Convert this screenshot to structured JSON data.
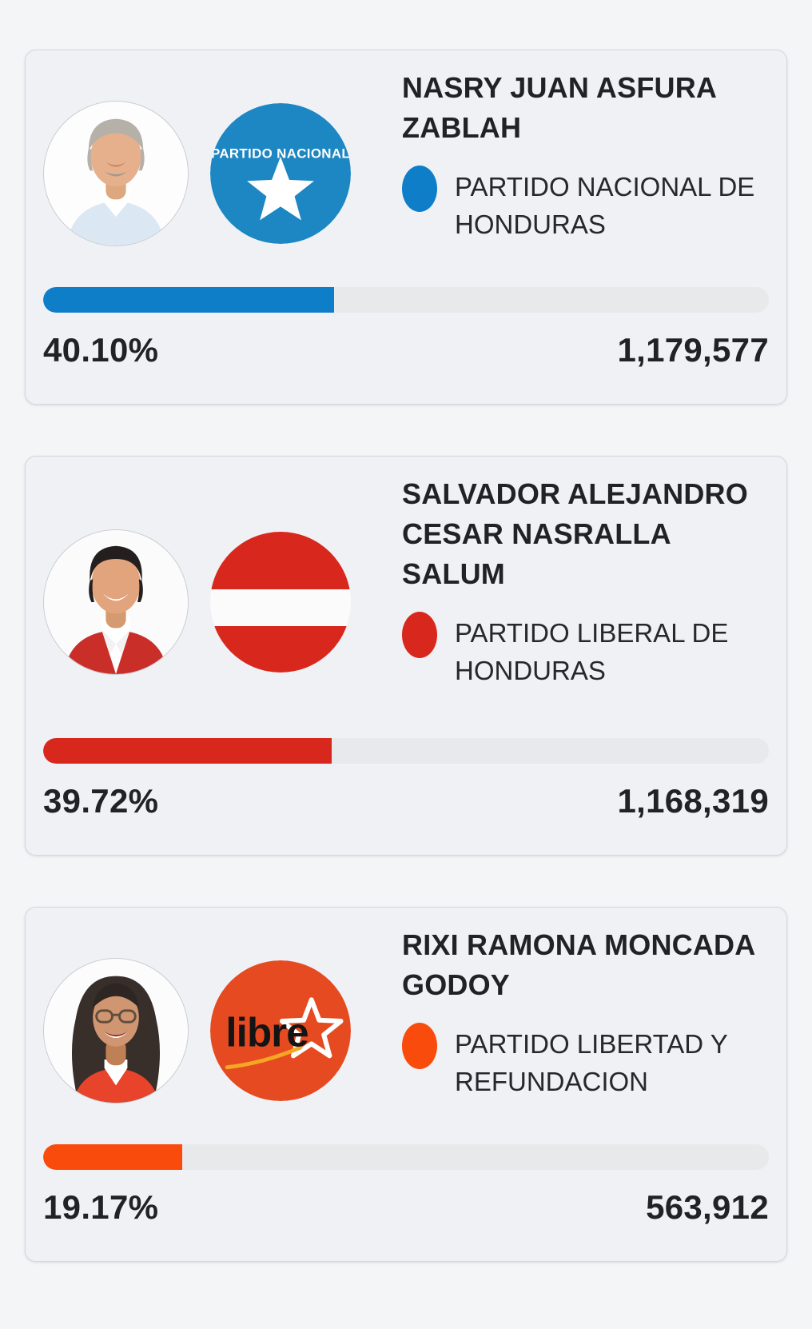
{
  "page": {
    "background_color": "#f4f5f7",
    "card_background_color": "#f0f1f4",
    "track_color": "#e8e9eb"
  },
  "candidates": [
    {
      "name": [
        "NASRY JUAN ASFURA",
        "ZABLAH"
      ],
      "party_name": [
        "PARTIDO NACIONAL DE",
        "HONDURAS"
      ],
      "party_color": "#0f7ec9",
      "percent": "40.10%",
      "votes": "1,179,577",
      "logo": {
        "type": "blue-circle-white-star",
        "label": "PARTIDO NACIONAL",
        "color": "#1d87c3"
      },
      "photo": "older-man-gray-hair-light-blue-shirt"
    },
    {
      "name": [
        "SALVADOR ALEJANDRO",
        "CESAR NASRALLA",
        "SALUM"
      ],
      "party_name": [
        "PARTIDO LIBERAL DE",
        "HONDURAS"
      ],
      "party_color": "#d8281e",
      "percent": "39.72%",
      "votes": "1,168,319",
      "logo": {
        "type": "red-circle-white-band",
        "color": "#d8281e"
      },
      "photo": "man-dark-hair-red-jacket-white-shirt"
    },
    {
      "name": [
        "RIXI RAMONA MONCADA",
        "GODOY"
      ],
      "party_name": [
        "PARTIDO LIBERTAD Y",
        "REFUNDACION"
      ],
      "party_color": "#f94b0c",
      "percent": "19.17%",
      "votes": "563,912",
      "logo": {
        "type": "orange-circle-libre-star",
        "label": "libre",
        "color": "#e64a20"
      },
      "photo": "woman-dark-hair-glasses-red-top"
    }
  ]
}
